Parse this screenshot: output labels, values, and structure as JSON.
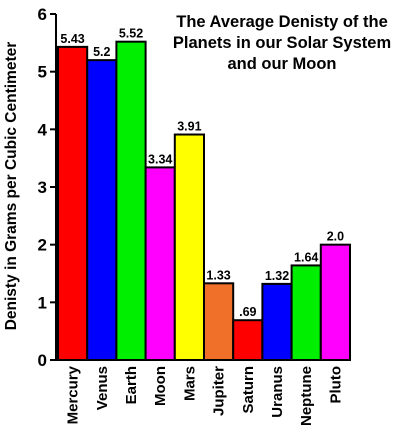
{
  "chart_data": {
    "type": "bar",
    "title": "The Average Denisty of the Planets in our Solar System and our Moon",
    "xlabel": "",
    "ylabel": "Denisty in Grams per Cubic Centimeter",
    "ylim": [
      0,
      6
    ],
    "yticks": [
      "0",
      "1",
      "2",
      "3",
      "4",
      "5",
      "6"
    ],
    "grid": false,
    "categories": [
      "Mercury",
      "Venus",
      "Earth",
      "Moon",
      "Mars",
      "Jupiter",
      "Saturn",
      "Uranus",
      "Neptune",
      "Pluto"
    ],
    "values": [
      5.43,
      5.2,
      5.52,
      3.34,
      3.91,
      1.33,
      0.69,
      1.32,
      1.64,
      2.0
    ],
    "data_labels": [
      "5.43",
      "5.2",
      "5.52",
      "3.34",
      "3.91",
      "1.33",
      ".69",
      "1.32",
      "1.64",
      "2.0"
    ],
    "colors": [
      "#ff0000",
      "#0000ff",
      "#00ee00",
      "#ff00ff",
      "#ffff00",
      "#f0702a",
      "#ff0000",
      "#0000ff",
      "#00ee00",
      "#ff00ff"
    ]
  }
}
